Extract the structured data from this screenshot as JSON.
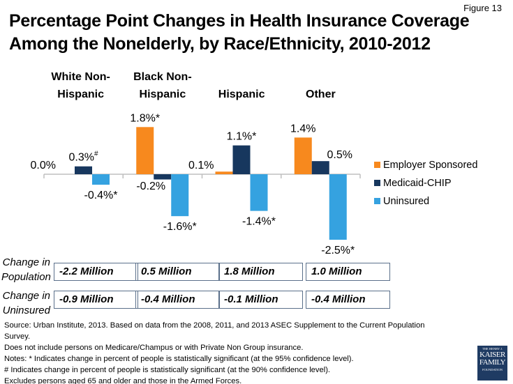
{
  "figure_label": "Figure 13",
  "title_line1": "Percentage Point Changes in Health Insurance Coverage",
  "title_line2": "Among the Nonelderly, by Race/Ethnicity, 2010-2012",
  "chart_data": {
    "type": "bar",
    "title": "Percentage Point Changes in Health Insurance Coverage Among the Nonelderly, by Race/Ethnicity, 2010-2012",
    "categories": [
      "White Non-Hispanic",
      "Black Non-Hispanic",
      "Hispanic",
      "Other"
    ],
    "category_lines": [
      [
        "White Non-",
        "Hispanic"
      ],
      [
        "Black Non-",
        "Hispanic"
      ],
      [
        "",
        "Hispanic"
      ],
      [
        "",
        "Other"
      ]
    ],
    "series": [
      {
        "name": "Employer Sponsored",
        "color": "#F7891E",
        "values": [
          0.0,
          1.8,
          0.1,
          1.4
        ],
        "labels": [
          "0.0%",
          "1.8%*",
          "0.1%",
          "1.4%"
        ]
      },
      {
        "name": "Medicaid-CHIP",
        "color": "#17375E",
        "values": [
          0.3,
          -0.2,
          1.1,
          0.5
        ],
        "labels": [
          "0.3%#",
          "-0.2%",
          "1.1%*",
          "0.5%"
        ]
      },
      {
        "name": "Uninsured",
        "color": "#35A2E0",
        "values": [
          -0.4,
          -1.6,
          -1.4,
          -2.5
        ],
        "labels": [
          "-0.4%*",
          "-1.6%*",
          "-1.4%*",
          "-2.5%*"
        ]
      }
    ],
    "ylim": [
      -2.7,
      2.0
    ],
    "legend_position": "right",
    "grid": false
  },
  "table": {
    "row_labels": [
      [
        "Change in",
        "Population"
      ],
      [
        "Change in",
        "Uninsured"
      ]
    ],
    "population": [
      "-2.2 Million",
      "0.5 Million",
      "1.8 Million",
      "1.0 Million"
    ],
    "uninsured": [
      "-0.9 Million",
      "-0.4 Million",
      "-0.1 Million",
      "-0.4 Million"
    ]
  },
  "notes": [
    "Source: Urban Institute, 2013. Based on data from the 2008, 2011, and 2013 ASEC Supplement to the Current Population Survey.",
    "Does not include persons on Medicare/Champus or with Private Non Group insurance.",
    "Notes: * Indicates change in percent of people is statistically significant (at the 95% confidence level).",
    "# Indicates change in percent of people is statistically significant (at the 90% confidence level).",
    "Excludes persons aged 65 and older and those in the Armed Forces."
  ],
  "logo": {
    "line1": "THE HENRY J.",
    "line2": "KAISER",
    "line3": "FAMILY",
    "line4": "FOUNDATION"
  }
}
